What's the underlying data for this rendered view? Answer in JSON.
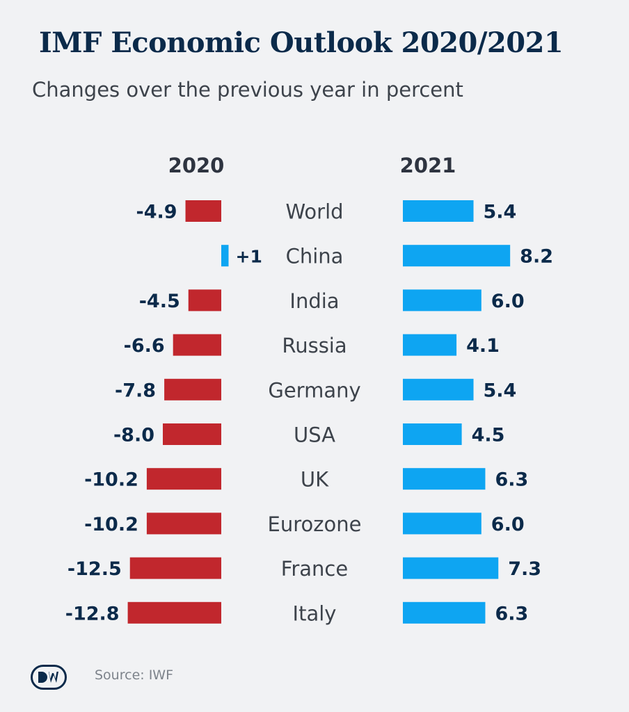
{
  "title": "IMF Economic Outlook 2020/2021",
  "subtitle": "Changes over the previous year in percent",
  "source": "Source: IWF",
  "logo_text": "DW",
  "colors": {
    "negative": "#c1272d",
    "positive": "#0ea5f2",
    "value_text": "#0b2a4a",
    "label_text": "#3d434b",
    "background": "#f1f2f4"
  },
  "chart_data": {
    "type": "bar",
    "categories": [
      "World",
      "China",
      "India",
      "Russia",
      "Germany",
      "USA",
      "UK",
      "Eurozone",
      "France",
      "Italy"
    ],
    "series": [
      {
        "name": "2020",
        "values": [
          -4.9,
          1,
          -4.5,
          -6.6,
          -7.8,
          -8.0,
          -10.2,
          -10.2,
          -12.5,
          -12.8
        ],
        "labels": [
          "-4.9",
          "+1",
          "-4.5",
          "-6.6",
          "-7.8",
          "-8.0",
          "-10.2",
          "-10.2",
          "-12.5",
          "-12.8"
        ]
      },
      {
        "name": "2021",
        "values": [
          5.4,
          8.2,
          6.0,
          4.1,
          5.4,
          4.5,
          6.3,
          6.0,
          7.3,
          6.3
        ],
        "labels": [
          "5.4",
          "8.2",
          "6.0",
          "4.1",
          "5.4",
          "4.5",
          "6.3",
          "6.0",
          "7.3",
          "6.3"
        ]
      }
    ],
    "title": "IMF Economic Outlook 2020/2021",
    "subtitle": "Changes over the previous year in percent",
    "xlabel": "",
    "ylabel": "",
    "grid": false,
    "legend": "none"
  }
}
